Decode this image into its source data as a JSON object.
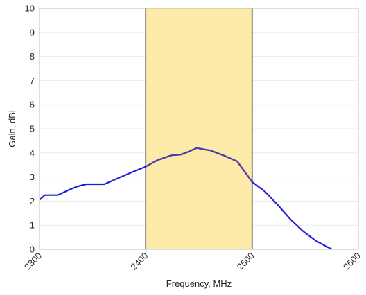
{
  "chart_data": {
    "type": "line",
    "title": "",
    "xlabel": "Frequency, MHz",
    "ylabel": "Gain, dBi",
    "xlim": [
      2300,
      2600
    ],
    "ylim": [
      0,
      10
    ],
    "xticks": [
      2300,
      2400,
      2500,
      2600
    ],
    "yticks": [
      0,
      1,
      2,
      3,
      4,
      5,
      6,
      7,
      8,
      9,
      10
    ],
    "xtick_labels": [
      "2300",
      "2400",
      "2500",
      "2600"
    ],
    "ytick_labels": [
      "0",
      "1",
      "2",
      "3",
      "4",
      "5",
      "6",
      "7",
      "8",
      "9",
      "10"
    ],
    "grid": true,
    "band": {
      "x_start": 2400,
      "x_end": 2500,
      "color": "#fde9a8"
    },
    "band_edge_color": "#1a1a1a",
    "series": [
      {
        "color": "#1f1fd9",
        "in_band_color": "#4b3fa6",
        "x": [
          2300,
          2305,
          2317,
          2327,
          2335,
          2344,
          2350,
          2361,
          2374,
          2387,
          2400,
          2411,
          2424,
          2433,
          2440,
          2448,
          2461,
          2473,
          2486,
          2500,
          2512,
          2524,
          2536,
          2548,
          2560,
          2575
        ],
        "y": [
          2.05,
          2.25,
          2.25,
          2.45,
          2.6,
          2.7,
          2.7,
          2.7,
          2.95,
          3.2,
          3.43,
          3.7,
          3.9,
          3.93,
          4.05,
          4.2,
          4.1,
          3.9,
          3.65,
          2.8,
          2.4,
          1.85,
          1.25,
          0.75,
          0.35,
          0.0
        ]
      }
    ]
  }
}
